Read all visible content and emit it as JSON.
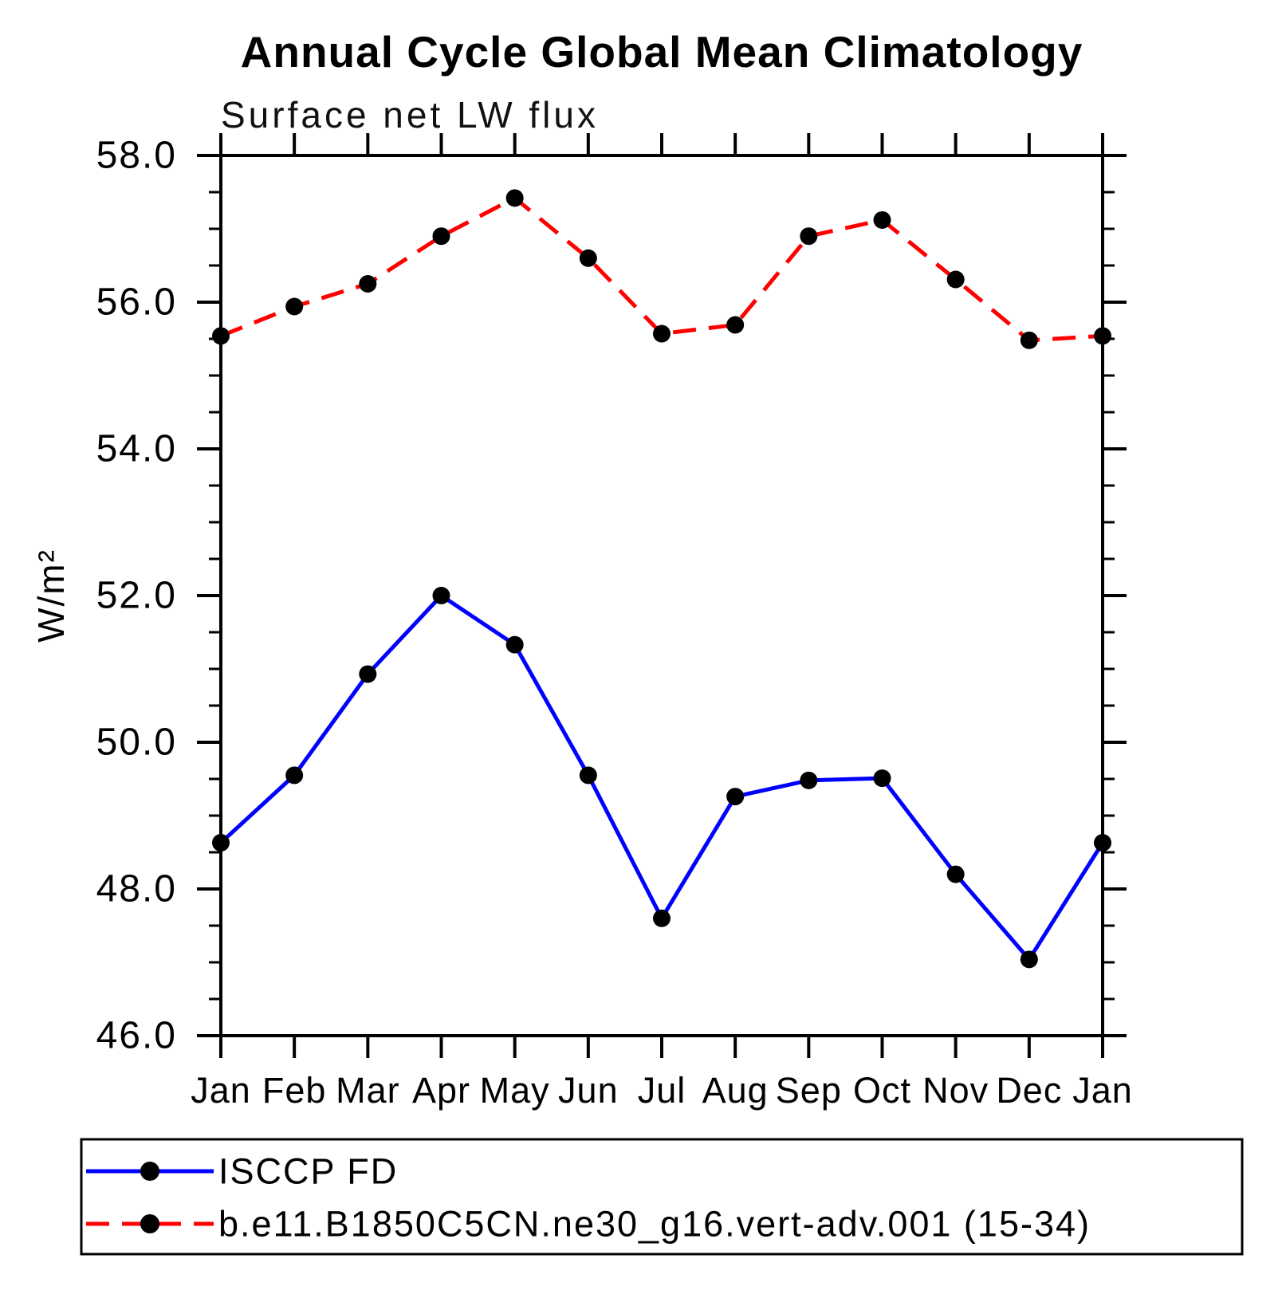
{
  "title": "Annual Cycle Global Mean Climatology",
  "chart_data": {
    "type": "line",
    "title": "Annual Cycle Global Mean Climatology",
    "subtitle": "Surface net LW flux",
    "ylabel": "W/m²",
    "xlabel": "",
    "ylim": [
      46.0,
      58.0
    ],
    "y_major_ticks": [
      46.0,
      48.0,
      50.0,
      52.0,
      54.0,
      56.0,
      58.0
    ],
    "y_tick_labels": [
      "46.0",
      "48.0",
      "50.0",
      "52.0",
      "54.0",
      "56.0",
      "58.0"
    ],
    "y_minor_step": 0.5,
    "grid": false,
    "categories": [
      "Jan",
      "Feb",
      "Mar",
      "Apr",
      "May",
      "Jun",
      "Jul",
      "Aug",
      "Sep",
      "Oct",
      "Nov",
      "Dec",
      "Jan"
    ],
    "series": [
      {
        "name": "ISCCP FD",
        "color": "#0000ff",
        "line_style": "solid",
        "marker": "filled-black-circle",
        "values": [
          48.63,
          49.55,
          50.93,
          52.0,
          51.33,
          49.55,
          47.6,
          49.26,
          49.48,
          49.51,
          48.2,
          47.04,
          48.63
        ]
      },
      {
        "name": "b.e11.B1850C5CN.ne30_g16.vert-adv.001 (15-34)",
        "color": "#ff0000",
        "line_style": "dashed",
        "marker": "filled-black-circle",
        "values": [
          55.54,
          55.94,
          56.25,
          56.9,
          57.42,
          56.6,
          55.57,
          55.69,
          56.9,
          57.12,
          56.31,
          55.48,
          55.54
        ]
      }
    ],
    "legend_position": "bottom-box"
  }
}
